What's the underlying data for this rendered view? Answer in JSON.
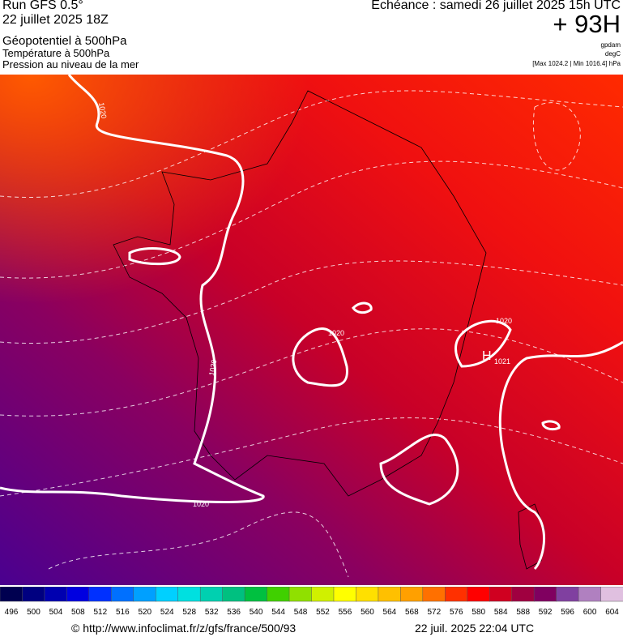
{
  "header": {
    "run": "Run GFS 0.5°",
    "date": "22 juillet 2025 18Z",
    "layers": [
      "Géopotentiel à 500hPa",
      "Température à 500hPa",
      "Pression au niveau de la mer"
    ],
    "forecast": "Echéance : samedi 26 juillet 2025 15h UTC",
    "lead": "+ 93H",
    "units": [
      "gpdam",
      "degC",
      "[Max 1024.2 | Min 1016.4] hPa"
    ]
  },
  "map": {
    "isobar_labels": [
      "1020",
      "1020",
      "1020",
      "1020",
      "1020"
    ],
    "high": {
      "symbol": "H",
      "value": "1021"
    }
  },
  "legend": {
    "labels": [
      496,
      500,
      504,
      508,
      512,
      516,
      520,
      524,
      528,
      532,
      536,
      540,
      544,
      548,
      552,
      556,
      560,
      564,
      568,
      572,
      576,
      580,
      584,
      588,
      592,
      596,
      600,
      604
    ],
    "colors": [
      "#000050",
      "#000080",
      "#0000b0",
      "#0000e0",
      "#0030ff",
      "#0070ff",
      "#00a0ff",
      "#00d0ff",
      "#00e0e0",
      "#00d0b0",
      "#00c080",
      "#00c040",
      "#40d000",
      "#90e000",
      "#d0f000",
      "#ffff00",
      "#ffe000",
      "#ffc000",
      "#ffa000",
      "#ff7000",
      "#ff3000",
      "#ff0000",
      "#d00020",
      "#a00040",
      "#800060",
      "#8040a0",
      "#b080c0",
      "#e0c0e0"
    ]
  },
  "footer": {
    "url": "© http://www.infoclimat.fr/z/gfs/france/500/93",
    "timestamp": "22 juil. 2025 22:04 UTC"
  }
}
